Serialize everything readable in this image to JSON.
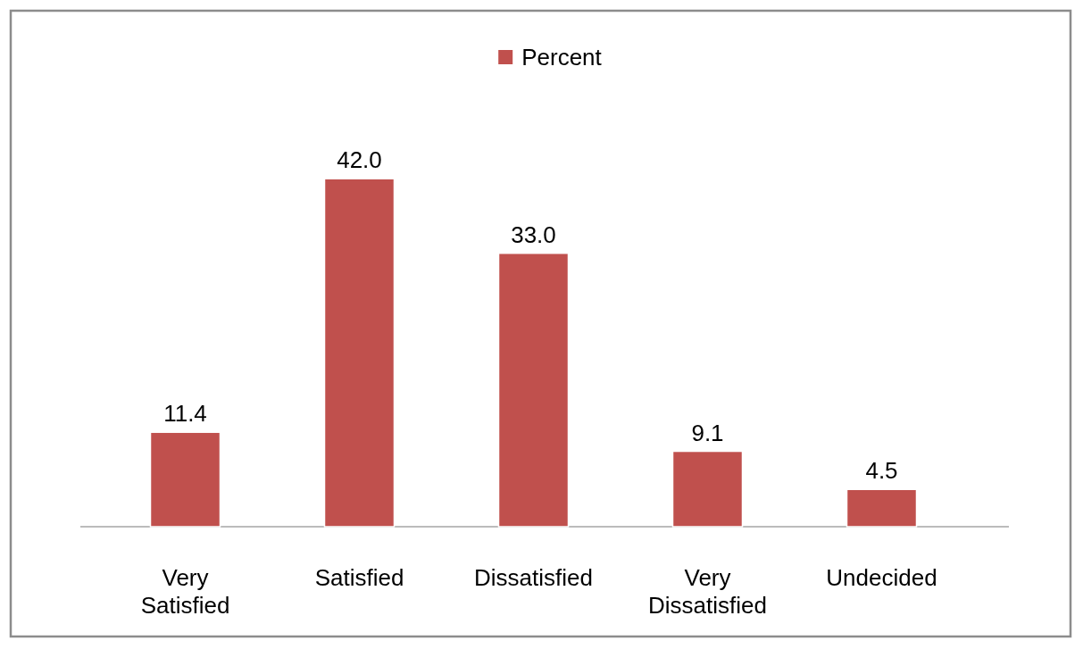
{
  "chart_data": {
    "type": "bar",
    "categories": [
      "Very Satisfied",
      "Satisfied",
      "Dissatisfied",
      "Very Dissatisfied",
      "Undecided"
    ],
    "series": [
      {
        "name": "Percent",
        "color": "#c0504d",
        "values": [
          11.4,
          42.0,
          33.0,
          9.1,
          4.5
        ],
        "value_labels": [
          "11.4",
          "42.0",
          "33.0",
          "9.1",
          "4.5"
        ]
      }
    ],
    "legend": "top"
  }
}
